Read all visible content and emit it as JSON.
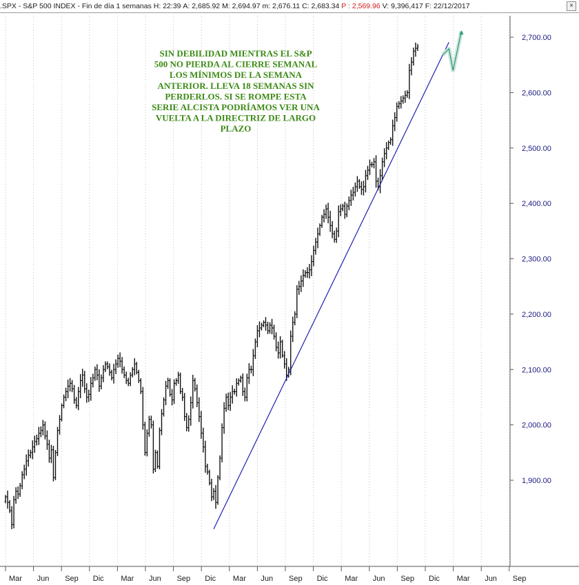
{
  "header": {
    "symbol": ".SPX",
    "sep1": " - ",
    "name": "S&P 500 INDEX",
    "sep2": " - ",
    "period": "Fin de día 1 semanas",
    "h_label": "H:",
    "h_val": "22:39",
    "a_label": "A:",
    "a_val": "2,685.92",
    "m_label": "M:",
    "m_val": "2,694.97",
    "mm_label": "m:",
    "mm_val": "2,676.11",
    "c_label": "C:",
    "c_val": "2,683.34",
    "p_label": "P :",
    "p_val": "2,569.96",
    "v_label": "V:",
    "v_val": "9,396,417",
    "f_label": "F:",
    "f_val": "22/12/2017",
    "close_icon": "close-icon"
  },
  "annotation": [
    "SIN DEBILIDAD MIENTRAS EL S&P",
    "500 NO PIERDA AL CIERRE SEMANAL",
    "LOS MÍNIMOS DE LA SEMANA",
    "ANTERIOR. LLEVA 18 SEMANAS SIN",
    "PERDERLOS. SI SE ROMPE ESTA",
    "SERIE ALCISTA PODRÍAMOS VER UNA",
    "VUELTA A LA DIRECTRIZ DE LARGO",
    "PLAZO"
  ],
  "colors": {
    "bars": "#111111",
    "trendline": "#1f1fae",
    "annotation": "#3c8a16",
    "projection": "#2e9a7a",
    "axis": "#1a1a80",
    "grid": "#c0c0c0"
  },
  "chart_data": {
    "type": "bar",
    "style": "ohlc-weekly",
    "ylim": [
      1800,
      2750
    ],
    "grid": "dotted-vertical",
    "y_ticks": [
      1900,
      2000,
      2100,
      2200,
      2300,
      2400,
      2500,
      2600,
      2700
    ],
    "y_tick_labels": [
      "1,900.00",
      "2,000.00",
      "2,100.00",
      "2,200.00",
      "2,300.00",
      "2,400.00",
      "2,500.00",
      "2,600.00",
      "2,700.00"
    ],
    "x_tick_labels": [
      "Mar",
      "Jun",
      "Sep",
      "Dic",
      "Mar",
      "Jun",
      "Sep",
      "Dic",
      "Mar",
      "Jun",
      "Sep",
      "Dic",
      "Mar",
      "Jun",
      "Sep",
      "Dic",
      "Mar",
      "Jun",
      "Sep"
    ],
    "closes": [
      1870,
      1860,
      1845,
      1820,
      1865,
      1880,
      1875,
      1890,
      1910,
      1920,
      1935,
      1945,
      1950,
      1960,
      1970,
      1975,
      1985,
      1990,
      2000,
      1980,
      1965,
      1940,
      1955,
      1905,
      1950,
      1990,
      2010,
      2035,
      2050,
      2060,
      2070,
      2075,
      2065,
      2045,
      2035,
      2060,
      2080,
      2090,
      2065,
      2050,
      2055,
      2075,
      2085,
      2100,
      2090,
      2070,
      2085,
      2100,
      2110,
      2105,
      2095,
      2085,
      2100,
      2110,
      2120,
      2115,
      2100,
      2090,
      2080,
      2075,
      2090,
      2100,
      2110,
      2095,
      2080,
      2060,
      2000,
      1950,
      1985,
      2010,
      2000,
      1920,
      1950,
      1925,
      1990,
      2020,
      2045,
      2070,
      2080,
      2055,
      2045,
      2075,
      2080,
      2090,
      2060,
      2050,
      2015,
      1995,
      2010,
      2040,
      2080,
      2065,
      2040,
      2015,
      1985,
      1960,
      1925,
      1915,
      1895,
      1870,
      1880,
      1860,
      1905,
      1940,
      1995,
      2030,
      2050,
      2035,
      2050,
      2060,
      2060,
      2075,
      2080,
      2085,
      2060,
      2050,
      2085,
      2100,
      2100,
      2125,
      2150,
      2170,
      2175,
      2180,
      2185,
      2180,
      2170,
      2180,
      2175,
      2160,
      2140,
      2130,
      2150,
      2125,
      2110,
      2090,
      2100,
      2160,
      2185,
      2200,
      2245,
      2250,
      2260,
      2270,
      2275,
      2275,
      2280,
      2295,
      2315,
      2330,
      2345,
      2360,
      2375,
      2380,
      2390,
      2375,
      2360,
      2345,
      2335,
      2350,
      2385,
      2390,
      2395,
      2380,
      2395,
      2405,
      2415,
      2420,
      2430,
      2440,
      2430,
      2425,
      2430,
      2450,
      2460,
      2470,
      2470,
      2475,
      2440,
      2430,
      2450,
      2475,
      2490,
      2500,
      2510,
      2515,
      2540,
      2555,
      2575,
      2580,
      2585,
      2590,
      2595,
      2600,
      2640,
      2655,
      2675,
      2680,
      2683
    ],
    "trendline": {
      "start": {
        "index": 100,
        "value": 1812
      },
      "end": {
        "index": 213,
        "value": 2691
      }
    },
    "projection": [
      {
        "index": 210,
        "value": 2668
      },
      {
        "index": 213,
        "value": 2679
      },
      {
        "index": 215,
        "value": 2640
      },
      {
        "index": 219,
        "value": 2711
      }
    ]
  }
}
